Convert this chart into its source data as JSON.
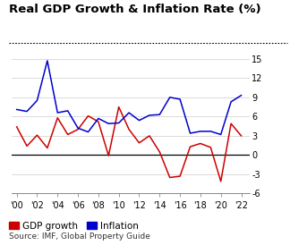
{
  "title": "Real GDP Growth & Inflation Rate (%)",
  "source": "Source: IMF, Global Property Guide",
  "years": [
    2000,
    2001,
    2002,
    2003,
    2004,
    2005,
    2006,
    2007,
    2008,
    2009,
    2010,
    2011,
    2012,
    2013,
    2014,
    2015,
    2016,
    2017,
    2018,
    2019,
    2020,
    2021,
    2022
  ],
  "gdp_growth": [
    4.4,
    1.4,
    3.1,
    1.1,
    5.8,
    3.2,
    4.0,
    6.1,
    5.2,
    -0.1,
    7.5,
    4.0,
    1.9,
    3.0,
    0.5,
    -3.5,
    -3.3,
    1.3,
    1.8,
    1.2,
    -4.1,
    4.9,
    3.0
  ],
  "inflation": [
    7.1,
    6.8,
    8.5,
    14.7,
    6.6,
    6.9,
    4.2,
    3.6,
    5.7,
    4.9,
    5.0,
    6.6,
    5.4,
    6.2,
    6.3,
    9.0,
    8.7,
    3.4,
    3.7,
    3.7,
    3.2,
    8.3,
    9.3
  ],
  "gdp_color": "#cc0000",
  "inflation_color": "#0000cc",
  "ylim": [
    -6,
    15
  ],
  "yticks": [
    -6,
    -3,
    0,
    3,
    6,
    9,
    12,
    15
  ],
  "xticks": [
    2000,
    2002,
    2004,
    2006,
    2008,
    2010,
    2012,
    2014,
    2016,
    2018,
    2020,
    2022
  ],
  "xlim": [
    1999.5,
    2022.8
  ],
  "background_color": "#ffffff",
  "title_fontsize": 9.5,
  "axis_fontsize": 7,
  "legend_fontsize": 7.5,
  "source_fontsize": 6.5
}
